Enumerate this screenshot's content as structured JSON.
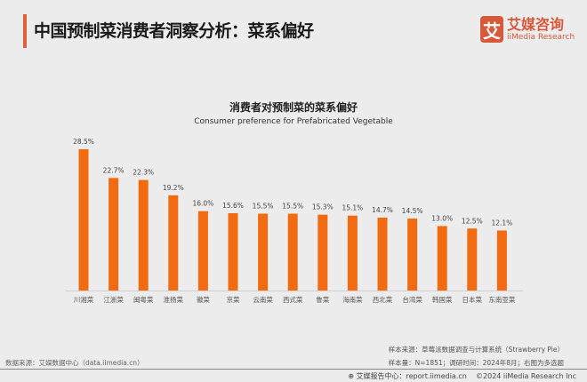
{
  "header": {
    "title": "中国预制菜消费者洞察分析：菜系偏好",
    "logo_mark": "艾",
    "logo_cn": "艾媒咨询",
    "logo_en": "iiMedia Research"
  },
  "colors": {
    "bar": "#f26b10",
    "accent": "#e0603c"
  },
  "chart_data": {
    "type": "bar",
    "title": "消费者对预制菜的菜系偏好",
    "subtitle": "Consumer preference for Prefabricated Vegetable",
    "categories": [
      "川湘菜",
      "江浙菜",
      "闽粤菜",
      "淮扬菜",
      "徽菜",
      "京菜",
      "云南菜",
      "西式菜",
      "鲁菜",
      "海南菜",
      "西北菜",
      "台湾菜",
      "韩国菜",
      "日本菜",
      "东南亚菜"
    ],
    "values": [
      28.5,
      22.7,
      22.3,
      19.2,
      16.0,
      15.6,
      15.5,
      15.5,
      15.3,
      15.1,
      14.7,
      14.5,
      13.0,
      12.5,
      12.1
    ],
    "labels": [
      "28.5%",
      "22.7%",
      "22.3%",
      "19.2%",
      "16.0%",
      "15.6%",
      "15.5%",
      "15.5%",
      "15.3%",
      "15.1%",
      "14.7%",
      "14.5%",
      "13.0%",
      "12.5%",
      "12.1%"
    ],
    "unit": "%",
    "grid": false
  },
  "footer": {
    "data_source": "数据来源：艾媒数据中心（data.iimedia.cn）",
    "sample_source": "样本来源：草莓派数据调查与计算系统（Strawberry Pie）",
    "sample_info": "样本量：N=1851；调研时间：2024年8月；右图为多选题",
    "report_center": "艾媒报告中心：report.iimedia.cn",
    "copyright": "©2024  iiMedia Research Inc"
  }
}
